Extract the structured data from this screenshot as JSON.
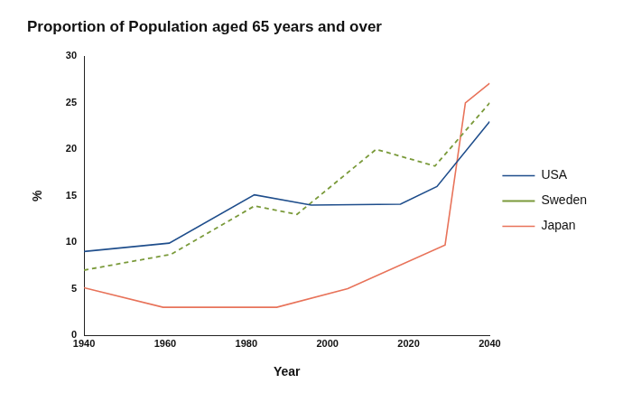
{
  "chart_data": {
    "type": "line",
    "title": "Proportion of Population aged 65 years and over",
    "x_label": "Year",
    "y_label": "%",
    "xlim": [
      1940,
      2040
    ],
    "xticks": [
      1940,
      1960,
      1980,
      2000,
      2020,
      2040
    ],
    "ylim": [
      0,
      30
    ],
    "yticks": [
      0,
      5,
      10,
      15,
      20,
      25,
      30
    ],
    "grid": false,
    "legend": "right",
    "series": [
      {
        "name": "USA",
        "color": "#1f4e8c",
        "line_style": "solid",
        "marker": "none",
        "x": [
          1940,
          1961,
          1982,
          1996,
          2018,
          2027,
          2040
        ],
        "values": [
          9,
          9.9,
          15.1,
          14,
          14.1,
          16,
          23
        ]
      },
      {
        "name": "Sweden",
        "color": "#7a9a3a",
        "line_style": "dashed",
        "marker": "none",
        "x": [
          1940,
          1961.5,
          1982,
          1992.5,
          2012,
          2026.5,
          2040
        ],
        "values": [
          7,
          8.7,
          13.9,
          13,
          20,
          18.2,
          25
        ]
      },
      {
        "name": "Japan",
        "color": "#e8735a",
        "line_style": "solid",
        "marker": "none",
        "x": [
          1940,
          1959.5,
          1987.5,
          2005,
          2029,
          2034,
          2040
        ],
        "values": [
          5.1,
          3,
          3,
          5,
          9.7,
          25,
          27.1
        ]
      }
    ]
  }
}
